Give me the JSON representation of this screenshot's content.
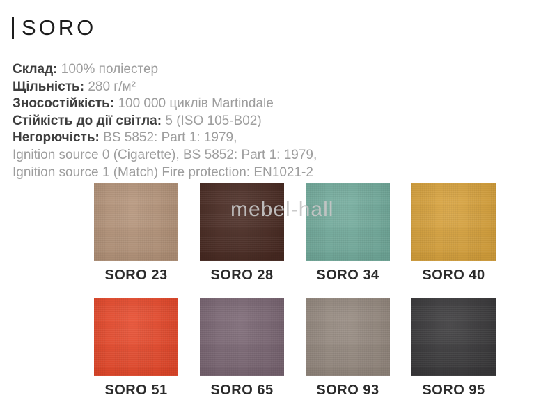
{
  "header": {
    "title": "SORO"
  },
  "watermark": {
    "text": "mebel-hall"
  },
  "specs": {
    "lines": [
      {
        "label": "Склад:",
        "value": "100% поліестер"
      },
      {
        "label": "Щільність:",
        "value": "280 г/м²"
      },
      {
        "label": "Зносостійкість:",
        "value": "100 000 циклів Martindale"
      },
      {
        "label": "Стійкість до дії світла:",
        "value": "5 (ISO 105-B02)"
      },
      {
        "label": "Негорючість:",
        "value": "BS 5852: Part 1: 1979,"
      },
      {
        "label": "",
        "value": "Ignition source 0 (Cigarette), BS 5852: Part 1: 1979,"
      },
      {
        "label": "",
        "value": "Ignition source 1 (Match) Fire protection: EN1021-2"
      }
    ]
  },
  "swatches": {
    "items": [
      {
        "name": "SORO 23",
        "color": "#b5947a"
      },
      {
        "name": "SORO 28",
        "color": "#492a22"
      },
      {
        "name": "SORO 34",
        "color": "#73ac9d"
      },
      {
        "name": "SORO 40",
        "color": "#d8a23c"
      },
      {
        "name": "SORO 51",
        "color": "#e7492b"
      },
      {
        "name": "SORO 65",
        "color": "#7a6673"
      },
      {
        "name": "SORO 93",
        "color": "#95897f"
      },
      {
        "name": "SORO 95",
        "color": "#3a393b"
      }
    ]
  }
}
